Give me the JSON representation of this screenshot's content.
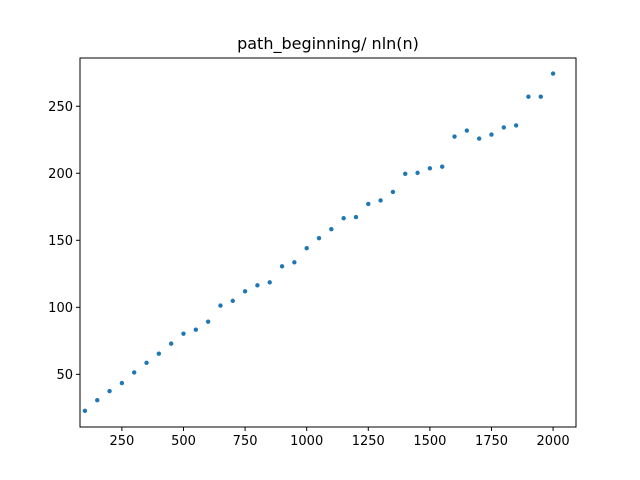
{
  "chart_data": {
    "type": "scatter",
    "title": "path_beginning/ nln(n)",
    "xlabel": "",
    "ylabel": "",
    "xlim": [
      80,
      2093
    ],
    "ylim": [
      10.7,
      286
    ],
    "grid": false,
    "marker_color": "#1f77b4",
    "x_ticks": [
      250,
      500,
      750,
      1000,
      1250,
      1500,
      1750,
      2000
    ],
    "y_ticks": [
      50,
      100,
      150,
      200,
      250
    ],
    "series": [
      {
        "x": [
          100,
          150,
          200,
          250,
          300,
          350,
          400,
          450,
          500,
          550,
          600,
          650,
          700,
          750,
          800,
          850,
          900,
          950,
          1000,
          1050,
          1100,
          1150,
          1200,
          1250,
          1300,
          1350,
          1400,
          1450,
          1500,
          1550,
          1600,
          1650,
          1700,
          1750,
          1800,
          1850,
          1900,
          1950,
          2000
        ],
        "y": [
          22.8,
          30.7,
          37.5,
          43.5,
          51.4,
          58.6,
          65.4,
          72.9,
          80.3,
          83.3,
          89.3,
          101.3,
          104.8,
          111.9,
          116.4,
          118.6,
          130.6,
          133.6,
          144.1,
          151.6,
          158.3,
          166.5,
          167.3,
          177.1,
          179.7,
          186.1,
          199.6,
          200.3,
          203.7,
          204.9,
          227.4,
          231.9,
          225.9,
          228.9,
          234.2,
          235.7,
          257.1,
          257.1,
          274.4
        ]
      }
    ]
  }
}
